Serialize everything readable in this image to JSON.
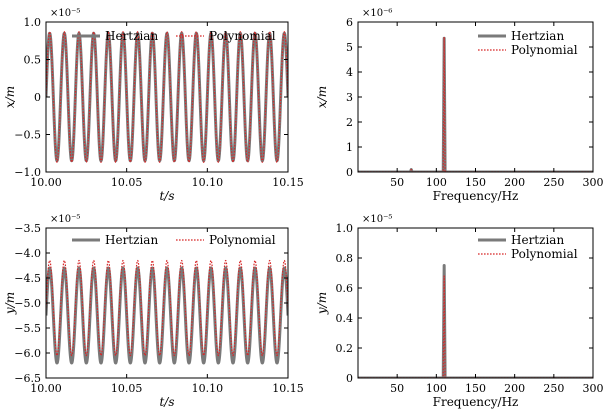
{
  "chart_data": [
    {
      "type": "line",
      "xlabel": "t/s",
      "ylabel": "x/m",
      "multiplier": "×10⁻⁵",
      "xlim": [
        10.0,
        10.15
      ],
      "ylim": [
        -1.0,
        1.0
      ],
      "xticks": [
        10.0,
        10.05,
        10.1,
        10.15
      ],
      "xtick_labels": [
        "10.00",
        "10.05",
        "10.10",
        "10.15"
      ],
      "yticks": [
        -1.0,
        -0.5,
        0,
        0.5,
        1.0
      ],
      "ytick_labels": [
        "−1.0",
        "−0.5",
        "0",
        "0.5",
        "1.0"
      ],
      "legend": "top",
      "series": [
        {
          "name": "Hertzian",
          "style": "solid",
          "color": "#7a7a7a",
          "signal": {
            "kind": "sine",
            "frequency_hz": 110,
            "amplitude": 0.85,
            "offset": 0
          }
        },
        {
          "name": "Polynomial",
          "style": "dotted",
          "color": "#d62728",
          "signal": {
            "kind": "sine",
            "frequency_hz": 110,
            "amplitude": 0.87,
            "offset": 0
          }
        }
      ]
    },
    {
      "type": "line",
      "xlabel": "Frequency/Hz",
      "ylabel": "x/m",
      "multiplier": "×10⁻⁶",
      "xlim": [
        0,
        300
      ],
      "ylim": [
        0,
        6
      ],
      "xticks": [
        50,
        100,
        150,
        200,
        250,
        300
      ],
      "xtick_labels": [
        "50",
        "100",
        "150",
        "200",
        "250",
        "300"
      ],
      "yticks": [
        0,
        1,
        2,
        3,
        4,
        5,
        6
      ],
      "ytick_labels": [
        "0",
        "1",
        "2",
        "3",
        "4",
        "5",
        "6"
      ],
      "legend": "top-right",
      "series": [
        {
          "name": "Hertzian",
          "style": "solid",
          "color": "#7a7a7a",
          "peaks": [
            {
              "x": 68,
              "y": 0.1
            },
            {
              "x": 110,
              "y": 5.35
            }
          ]
        },
        {
          "name": "Polynomial",
          "style": "dotted",
          "color": "#d62728",
          "peaks": [
            {
              "x": 68,
              "y": 0.1
            },
            {
              "x": 110,
              "y": 5.4
            }
          ]
        }
      ]
    },
    {
      "type": "line",
      "xlabel": "t/s",
      "ylabel": "y/m",
      "multiplier": "×10⁻⁵",
      "xlim": [
        10.0,
        10.15
      ],
      "ylim": [
        -6.5,
        -3.5
      ],
      "xticks": [
        10.0,
        10.05,
        10.1,
        10.15
      ],
      "xtick_labels": [
        "10.00",
        "10.05",
        "10.10",
        "10.15"
      ],
      "yticks": [
        -6.5,
        -6.0,
        -5.5,
        -5.0,
        -4.5,
        -4.0,
        -3.5
      ],
      "ytick_labels": [
        "−6.5",
        "−6.0",
        "−5.5",
        "−5.0",
        "−4.5",
        "−4.0",
        "−3.5"
      ],
      "legend": "top",
      "series": [
        {
          "name": "Hertzian",
          "style": "solid",
          "color": "#7a7a7a",
          "signal": {
            "kind": "sine",
            "frequency_hz": 110,
            "amplitude": 0.95,
            "offset": -5.25
          }
        },
        {
          "name": "Polynomial",
          "style": "dotted",
          "color": "#d62728",
          "signal": {
            "kind": "sine",
            "frequency_hz": 110,
            "amplitude": 0.95,
            "offset": -5.1
          }
        }
      ]
    },
    {
      "type": "line",
      "xlabel": "Frequency/Hz",
      "ylabel": "y/m",
      "multiplier": "×10⁻⁵",
      "xlim": [
        0,
        300
      ],
      "ylim": [
        0,
        1.0
      ],
      "xticks": [
        50,
        100,
        150,
        200,
        250,
        300
      ],
      "xtick_labels": [
        "50",
        "100",
        "150",
        "200",
        "250",
        "300"
      ],
      "yticks": [
        0,
        0.2,
        0.4,
        0.6,
        0.8,
        1.0
      ],
      "ytick_labels": [
        "0",
        "0.2",
        "0.4",
        "0.6",
        "0.8",
        "1.0"
      ],
      "legend": "top-right",
      "series": [
        {
          "name": "Hertzian",
          "style": "solid",
          "color": "#7a7a7a",
          "peaks": [
            {
              "x": 110,
              "y": 0.75
            }
          ]
        },
        {
          "name": "Polynomial",
          "style": "dotted",
          "color": "#d62728",
          "peaks": [
            {
              "x": 110,
              "y": 0.68
            }
          ]
        }
      ]
    }
  ]
}
